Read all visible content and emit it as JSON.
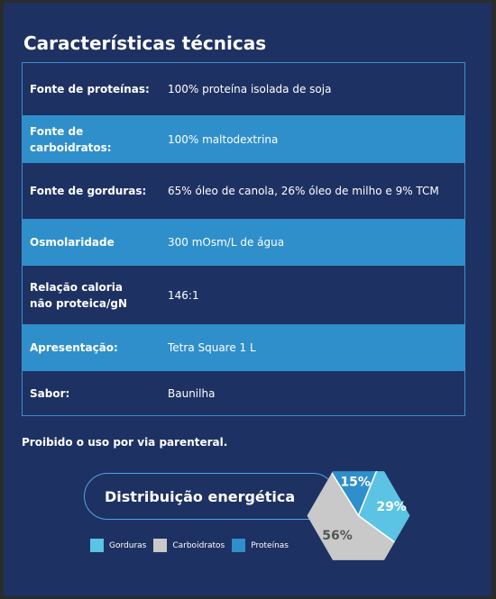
{
  "section": {
    "title": "Características técnicas",
    "rows": [
      {
        "label": "Fonte de proteínas:",
        "value": "100% proteína isolada de soja"
      },
      {
        "label": "Fonte de carboidratos:",
        "value": "100% maltodextrina"
      },
      {
        "label": "Fonte de gorduras:",
        "value": "65% óleo de canola, 26% óleo de milho e 9% TCM"
      },
      {
        "label": "Osmolaridade",
        "value": "300 mOsm/L de água"
      },
      {
        "label": "Relação caloria não proteica/gN",
        "value": "146:1"
      },
      {
        "label": "Apresentação:",
        "value": "Tetra Square 1 L"
      },
      {
        "label": "Sabor:",
        "value": "Baunilha"
      }
    ],
    "warning": "Proibido o uso por via parenteral."
  },
  "chart_data": {
    "type": "pie",
    "title": "Distribuição energética",
    "categories": [
      "Gorduras",
      "Carboidratos",
      "Proteínas"
    ],
    "values": [
      29,
      56,
      15
    ],
    "labels": [
      "29%",
      "56%",
      "15%"
    ],
    "colors": [
      "#5bc3e4",
      "#c9c9c9",
      "#2f8fcb"
    ],
    "legend_position": "bottom"
  }
}
